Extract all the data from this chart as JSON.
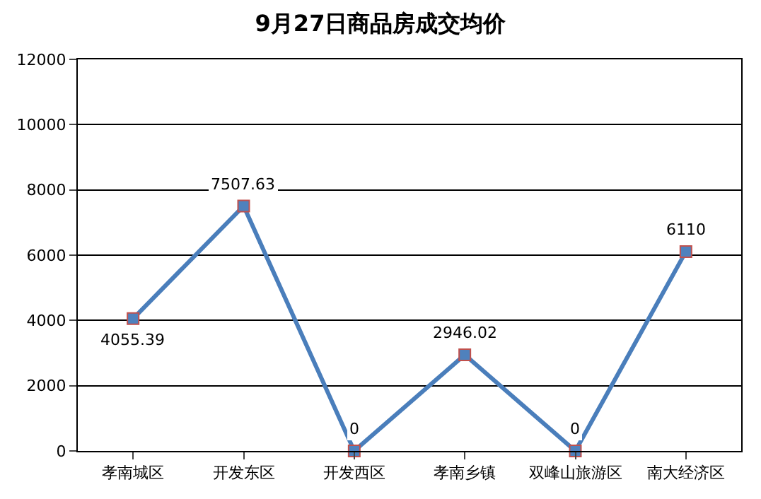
{
  "chart_data": {
    "type": "line",
    "title": "9月27日商品房成交均价",
    "categories": [
      "孝南城区",
      "开发东区",
      "开发西区",
      "孝南乡镇",
      "双峰山旅游区",
      "南大经济区"
    ],
    "series": [
      {
        "color": "#4a7ebb",
        "values": [
          4055.39,
          7507.63,
          0,
          2946.02,
          0,
          6110
        ]
      }
    ],
    "ylim": [
      0,
      12000
    ],
    "yticks": [
      0,
      2000,
      4000,
      6000,
      8000,
      10000,
      12000
    ],
    "grid": "y",
    "marker": "square",
    "line_style": "solid",
    "data_labels": true
  }
}
